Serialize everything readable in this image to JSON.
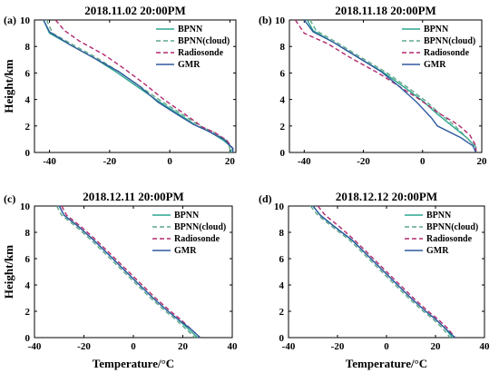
{
  "chart_data": [
    {
      "type": "line",
      "tag": "(a)",
      "title": "2018.11.02 20:00PM",
      "xlabel": "",
      "ylabel": "Height/km",
      "xlim": [
        -45,
        22
      ],
      "ylim": [
        0,
        10
      ],
      "xticks": [
        -40,
        -20,
        0,
        20
      ],
      "yticks": [
        0,
        2,
        4,
        6,
        8,
        10
      ],
      "legend_position": "top-right",
      "series": [
        {
          "name": "BPNN",
          "color": "#2ca58d",
          "dash": "solid",
          "x": [
            -42,
            -40,
            -33,
            -25,
            -18,
            -11,
            -4,
            3,
            9,
            13,
            18,
            21,
            20
          ],
          "y": [
            10,
            9,
            8.1,
            7.1,
            6.1,
            5,
            3.9,
            2.9,
            2,
            1.6,
            0.9,
            0.3,
            0
          ]
        },
        {
          "name": "BPNN(cloud)",
          "color": "#5fa88a",
          "dash": "dashed",
          "x": [
            -41,
            -39,
            -32,
            -24,
            -17,
            -10,
            -3,
            4,
            10,
            14,
            19,
            20,
            20
          ],
          "y": [
            10,
            9,
            8.1,
            7.1,
            6.1,
            5,
            3.9,
            2.9,
            2,
            1.6,
            0.9,
            0.3,
            0
          ]
        },
        {
          "name": "Radiosonde",
          "color": "#b3286e",
          "dash": "dashed",
          "x": [
            -38,
            -35,
            -30,
            -22,
            -15,
            -8,
            -2,
            5,
            11,
            15,
            19,
            21,
            21
          ],
          "y": [
            10,
            9.2,
            8.4,
            7.4,
            6.3,
            5.1,
            4,
            2.9,
            1.9,
            1.5,
            0.9,
            0.3,
            0
          ]
        },
        {
          "name": "GMR",
          "color": "#2e5a9e",
          "dash": "solid",
          "x": [
            -42,
            -40,
            -33,
            -25,
            -17,
            -10,
            -4,
            3,
            8,
            12,
            18,
            21,
            21
          ],
          "y": [
            10,
            9.1,
            8.1,
            7.1,
            6.1,
            5,
            3.8,
            2.8,
            2.1,
            1.7,
            1,
            0.3,
            0
          ]
        }
      ]
    },
    {
      "type": "line",
      "tag": "(b)",
      "title": "2018.11.18 20:00PM",
      "xlabel": "",
      "ylabel": "",
      "xlim": [
        -45,
        20
      ],
      "ylim": [
        0,
        10
      ],
      "xticks": [
        -40,
        -20,
        0,
        20
      ],
      "yticks": [
        0,
        2,
        4,
        6,
        8,
        10
      ],
      "legend_position": "top-right",
      "series": [
        {
          "name": "BPNN",
          "color": "#2ca58d",
          "dash": "solid",
          "x": [
            -39,
            -37,
            -30,
            -22,
            -13,
            -6,
            0,
            5,
            10,
            15,
            18,
            18
          ],
          "y": [
            10,
            9.2,
            8.3,
            7.2,
            6,
            4.9,
            3.9,
            2.9,
            2,
            1.1,
            0.4,
            0
          ]
        },
        {
          "name": "BPNN(cloud)",
          "color": "#5fa88a",
          "dash": "dashed",
          "x": [
            -38,
            -36,
            -29,
            -21,
            -12,
            -5,
            1,
            6,
            11,
            15,
            18,
            18
          ],
          "y": [
            10,
            9.2,
            8.3,
            7.2,
            6,
            4.9,
            3.9,
            2.9,
            2,
            1.1,
            0.4,
            0
          ]
        },
        {
          "name": "Radiosonde",
          "color": "#b3286e",
          "dash": "dashed",
          "x": [
            -43,
            -40,
            -32,
            -24,
            -15,
            -8,
            -1,
            6,
            12,
            16,
            18,
            18
          ],
          "y": [
            10,
            9,
            8.2,
            7.1,
            6,
            5,
            4,
            2.9,
            2.1,
            1.3,
            0.5,
            0
          ]
        },
        {
          "name": "GMR",
          "color": "#2e5a9e",
          "dash": "solid",
          "x": [
            -40,
            -37,
            -30,
            -22,
            -14,
            -8,
            -2,
            3,
            5,
            13,
            17,
            18
          ],
          "y": [
            10,
            9.1,
            8.3,
            7.2,
            6.1,
            5,
            3.8,
            2.6,
            2,
            1.1,
            0.5,
            0
          ]
        }
      ]
    },
    {
      "type": "line",
      "tag": "(c)",
      "title": "2018.12.11 20:00PM",
      "xlabel": "Temperature/°C",
      "ylabel": "Height/km",
      "xlim": [
        -40,
        40
      ],
      "ylim": [
        0,
        10
      ],
      "xticks": [
        -40,
        -20,
        0,
        20,
        40
      ],
      "yticks": [
        0,
        2,
        4,
        6,
        8,
        10
      ],
      "legend_position": "top-right",
      "series": [
        {
          "name": "BPNN",
          "color": "#2ca58d",
          "dash": "solid",
          "x": [
            -30,
            -28,
            -22,
            -16,
            -10,
            -4,
            2,
            8,
            14,
            18,
            22,
            26
          ],
          "y": [
            10,
            9.3,
            8.4,
            7.4,
            6.3,
            5.2,
            4.1,
            3,
            2,
            1.4,
            0.7,
            0
          ]
        },
        {
          "name": "BPNN(cloud)",
          "color": "#5fa88a",
          "dash": "dashed",
          "x": [
            -31,
            -29,
            -23,
            -17,
            -11,
            -5,
            1,
            7,
            13,
            17,
            21,
            25
          ],
          "y": [
            10,
            9.3,
            8.4,
            7.4,
            6.3,
            5.2,
            4.1,
            3,
            2,
            1.4,
            0.7,
            0
          ]
        },
        {
          "name": "Radiosonde",
          "color": "#b3286e",
          "dash": "dashed",
          "x": [
            -29,
            -27,
            -21,
            -15,
            -9,
            -3,
            3,
            9,
            15,
            19,
            23,
            27
          ],
          "y": [
            10,
            9.3,
            8.4,
            7.4,
            6.3,
            5.2,
            4.1,
            3,
            2,
            1.4,
            0.7,
            0
          ]
        },
        {
          "name": "GMR",
          "color": "#2e5a9e",
          "dash": "solid",
          "x": [
            -30,
            -28,
            -22,
            -16,
            -10,
            -4,
            2,
            8,
            14,
            18,
            23,
            27
          ],
          "y": [
            10,
            9.3,
            8.4,
            7.4,
            6.3,
            5.2,
            4.1,
            3,
            2,
            1.4,
            0.7,
            0
          ]
        }
      ]
    },
    {
      "type": "line",
      "tag": "(d)",
      "title": "2018.12.12 20:00PM",
      "xlabel": "Temperature/°C",
      "ylabel": "",
      "xlim": [
        -40,
        40
      ],
      "ylim": [
        0,
        10
      ],
      "xticks": [
        -40,
        -20,
        0,
        20,
        40
      ],
      "yticks": [
        0,
        2,
        4,
        6,
        8,
        10
      ],
      "legend_position": "top-right",
      "series": [
        {
          "name": "BPNN",
          "color": "#2ca58d",
          "dash": "solid",
          "x": [
            -30,
            -27,
            -21,
            -14,
            -8,
            -2,
            4,
            10,
            16,
            20,
            24,
            27
          ],
          "y": [
            10,
            9.3,
            8.4,
            7.4,
            6.3,
            5.2,
            4.1,
            3,
            2,
            1.4,
            0.7,
            0
          ]
        },
        {
          "name": "BPNN(cloud)",
          "color": "#5fa88a",
          "dash": "dashed",
          "x": [
            -31,
            -28,
            -22,
            -15,
            -9,
            -3,
            3,
            9,
            15,
            19,
            23,
            26
          ],
          "y": [
            10,
            9.3,
            8.4,
            7.4,
            6.3,
            5.2,
            4.1,
            3,
            2,
            1.4,
            0.7,
            0
          ]
        },
        {
          "name": "Radiosonde",
          "color": "#b3286e",
          "dash": "dashed",
          "x": [
            -28,
            -25,
            -19,
            -13,
            -7,
            -1,
            5,
            11,
            17,
            21,
            25,
            28
          ],
          "y": [
            10,
            9.3,
            8.4,
            7.4,
            6.3,
            5.2,
            4.1,
            3,
            2,
            1.4,
            0.7,
            0
          ]
        },
        {
          "name": "GMR",
          "color": "#2e5a9e",
          "dash": "solid",
          "x": [
            -30,
            -27,
            -21,
            -14,
            -8,
            -2,
            4,
            10,
            16,
            20,
            24,
            28
          ],
          "y": [
            10,
            9.3,
            8.4,
            7.4,
            6.3,
            5.2,
            4.1,
            3,
            2,
            1.4,
            0.7,
            0
          ]
        }
      ]
    }
  ]
}
